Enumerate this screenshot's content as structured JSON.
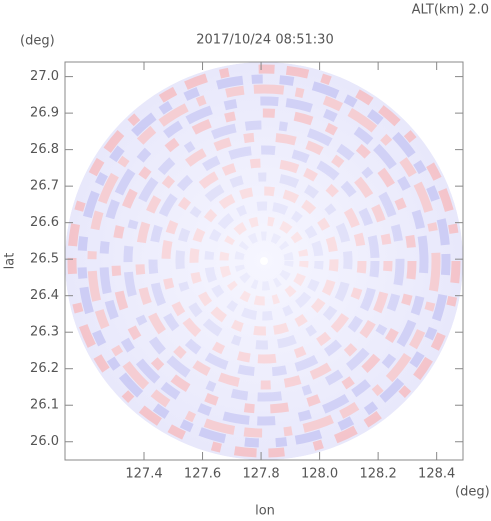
{
  "chart_data": {
    "type": "radar-ppi",
    "title": "2017/10/24 08:51:30",
    "altitude_label": "ALT(km) 2.0",
    "xlabel": "lon",
    "ylabel": "lat",
    "x_unit": "(deg)",
    "y_unit": "(deg)",
    "xlim": [
      127.13,
      128.49
    ],
    "ylim": [
      25.95,
      27.04
    ],
    "xticks": [
      {
        "value": 127.4,
        "label": "127.4"
      },
      {
        "value": 127.6,
        "label": "127.6"
      },
      {
        "value": 127.8,
        "label": "127.8"
      },
      {
        "value": 128.0,
        "label": "128.0"
      },
      {
        "value": 128.2,
        "label": "128.2"
      },
      {
        "value": 128.4,
        "label": "128.4"
      }
    ],
    "yticks": [
      {
        "value": 26.0,
        "label": "26.0"
      },
      {
        "value": 26.1,
        "label": "26.1"
      },
      {
        "value": 26.2,
        "label": "26.2"
      },
      {
        "value": 26.3,
        "label": "26.3"
      },
      {
        "value": 26.4,
        "label": "26.4"
      },
      {
        "value": 26.5,
        "label": "26.5"
      },
      {
        "value": 26.6,
        "label": "26.6"
      },
      {
        "value": 26.7,
        "label": "26.7"
      },
      {
        "value": 26.8,
        "label": "26.8"
      },
      {
        "value": 26.9,
        "label": "26.9"
      },
      {
        "value": 27.0,
        "label": "27.0"
      }
    ]
  }
}
